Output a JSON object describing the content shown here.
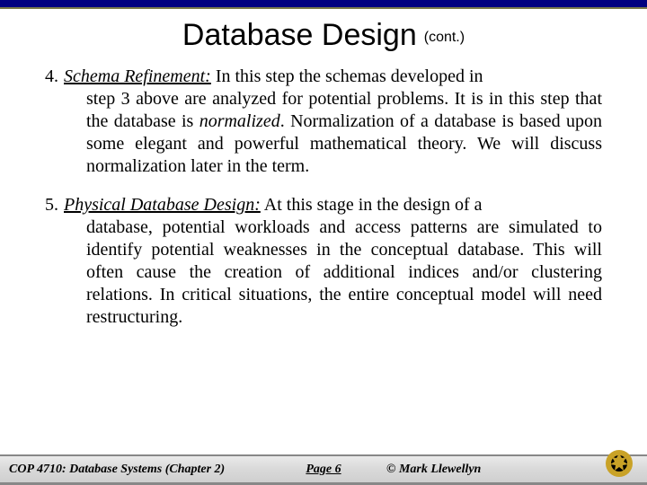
{
  "colors": {
    "topbar": "#000080",
    "topbar_border": "#7a7a4a",
    "text": "#000000",
    "footer_bg_top": "#eaeaea",
    "footer_bg_bottom": "#cfcfcf",
    "footer_border": "#888888",
    "logo_outer": "#c9a227",
    "logo_inner": "#000000"
  },
  "title": {
    "main": "Database Design",
    "cont": "(cont.)",
    "main_fontsize": 34,
    "cont_fontsize": 16,
    "font_family": "Arial"
  },
  "body_font": {
    "family": "Times New Roman",
    "size": 20,
    "line_height": 1.25,
    "align": "justify"
  },
  "items": [
    {
      "number": "4.",
      "heading": "Schema Refinement:",
      "first_line_tail": "  In this step the schemas developed in",
      "rest": "step 3 above are analyzed for potential problems.  It is in this step that the database is <i>normalized</i>.  Normalization of a database is based upon some elegant and powerful mathematical theory.  We will discuss normalization later in the term."
    },
    {
      "number": "5. ",
      "heading": "Physical Database Design:",
      "first_line_tail": "  At this stage in the design of a",
      "rest": "database, potential workloads and access patterns are simulated to identify potential weaknesses in the conceptual database.  This will often cause the creation of additional indices and/or clustering relations.  In critical situations, the entire conceptual model will need restructuring."
    }
  ],
  "footer": {
    "course": "COP 4710: Database Systems  (Chapter 2)",
    "page": "Page 6",
    "copyright": "© Mark Llewellyn"
  }
}
